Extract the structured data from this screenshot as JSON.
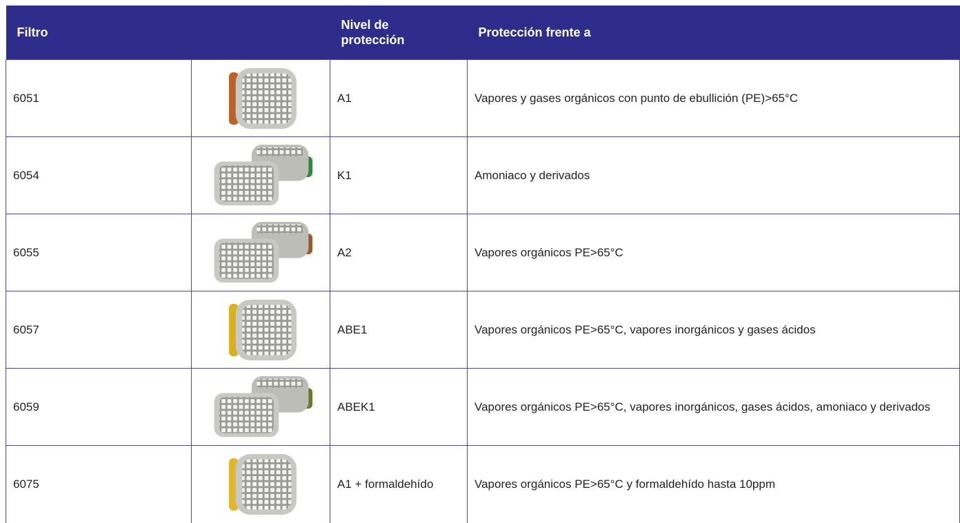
{
  "table": {
    "header": [
      "Filtro",
      "Nivel de protección",
      "Protección frente a"
    ],
    "rows": [
      [
        "6051",
        "A1",
        "Vapores y gases orgánicos con punto de ebullición (PE)>65°C"
      ],
      [
        "6054",
        "K1",
        "Amoniaco y derivados"
      ],
      [
        "6055",
        "A2",
        "Vapores orgánicos PE>65°C"
      ],
      [
        "6057",
        "ABE1",
        "Vapores orgánicos PE>65°C, vapores inorgánicos y gases ácidos"
      ],
      [
        "6059",
        "ABEK1",
        "Vapores orgánicos PE>65°C, vapores inorgánicos, gases ácidos, amoniaco y derivados"
      ],
      [
        "6075",
        "A1 + formaldehído",
        "Vapores orgánicos PE>65°C y formaldehído hasta 10ppm"
      ]
    ]
  }
}
